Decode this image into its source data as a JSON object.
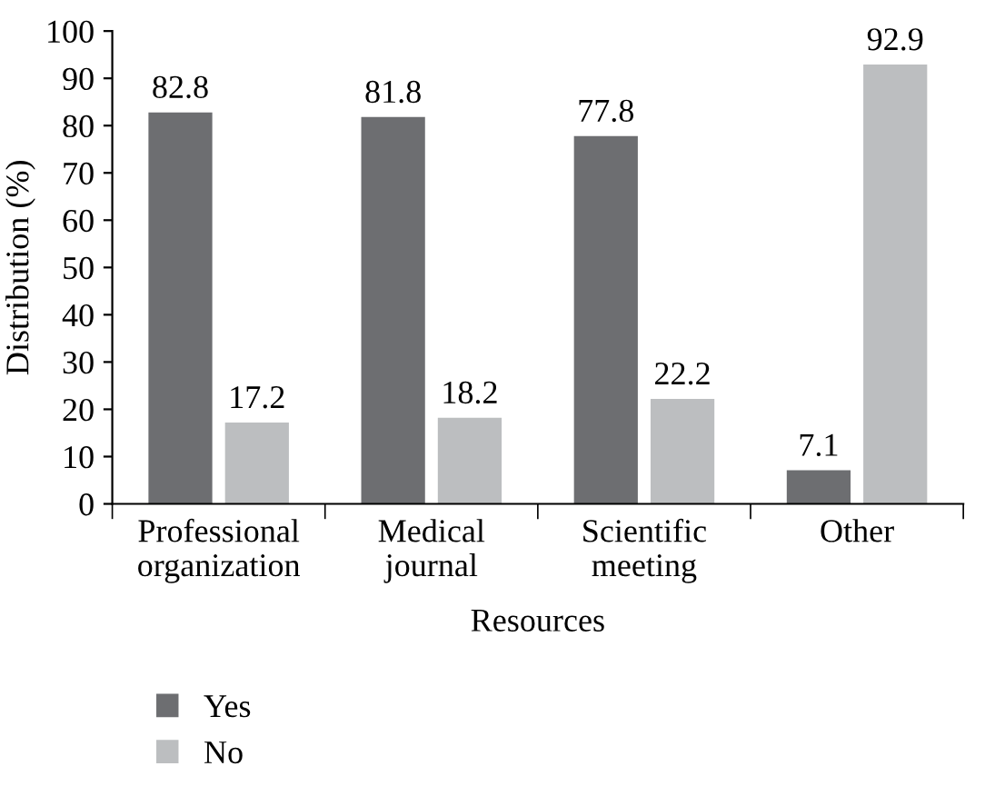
{
  "chart_data": {
    "type": "bar",
    "xlabel": "Resources",
    "ylabel": "Distribution (%)",
    "categories": [
      "Professional\norganization",
      "Medical\njournal",
      "Scientific\nmeeting",
      "Other"
    ],
    "series": [
      {
        "name": "Yes",
        "color": "#6d6e71",
        "values": [
          82.8,
          81.8,
          77.8,
          7.1
        ]
      },
      {
        "name": "No",
        "color": "#bcbec0",
        "values": [
          17.2,
          18.2,
          22.2,
          92.9
        ]
      }
    ],
    "ylim": [
      0,
      100
    ],
    "yticks": [
      0,
      10,
      20,
      30,
      40,
      50,
      60,
      70,
      80,
      90,
      100
    ],
    "grid": false,
    "legend": "bottom",
    "data_labels": true
  }
}
